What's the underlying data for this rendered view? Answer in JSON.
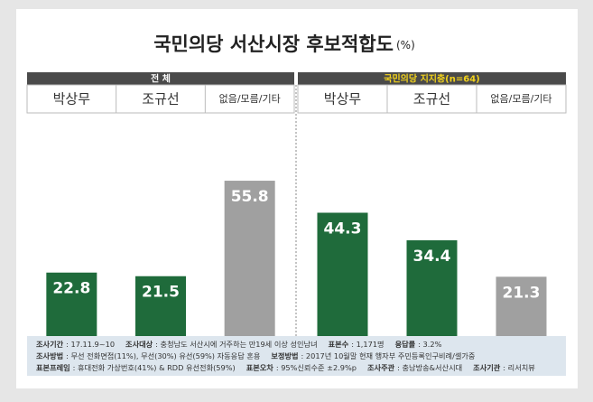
{
  "title": "국민의당 서산시장 후보적합도",
  "unit": "(%)",
  "chart_data": [
    {
      "type": "bar",
      "title": "전 체",
      "categories": [
        "박상무",
        "조규선",
        "없음/모름/기타"
      ],
      "values": [
        22.8,
        21.5,
        55.8
      ],
      "colors": [
        "#1f6b3b",
        "#1f6b3b",
        "#a0a0a0"
      ],
      "ylim": [
        0,
        60
      ]
    },
    {
      "type": "bar",
      "title": "국민의당 지지층(n=64)",
      "categories": [
        "박상무",
        "조규선",
        "없음/모름/기타"
      ],
      "values": [
        44.3,
        34.4,
        21.3
      ],
      "colors": [
        "#1f6b3b",
        "#1f6b3b",
        "#a0a0a0"
      ],
      "ylim": [
        0,
        60
      ]
    }
  ],
  "notes": [
    [
      {
        "label": "조사기간",
        "text": ": 17.11.9~10"
      },
      {
        "label": "조사대상",
        "text": ": 충청남도 서산시에 거주하는 만19세 이상 성인남녀"
      },
      {
        "label": "표본수",
        "text": ": 1,171명"
      },
      {
        "label": "응답률",
        "text": ": 3.2%"
      }
    ],
    [
      {
        "label": "조사방법",
        "text": ": 무선 전화면접(11%), 무선(30%) 유선(59%) 자동응답 혼용"
      },
      {
        "label": "보정방법",
        "text": ": 2017년 10월말 현재 행자부 주민등록인구비례/셀가중"
      }
    ],
    [
      {
        "label": "표본프레임",
        "text": ": 휴대전화 가상번호(41%) & RDD 유선전화(59%)"
      },
      {
        "label": "표본오차",
        "text": ": 95%신뢰수준 ±2.9%p"
      },
      {
        "label": "조사주관",
        "text": ": 충남방송&서산시대"
      },
      {
        "label": "조사기관",
        "text": ": 리서치뷰"
      }
    ]
  ]
}
